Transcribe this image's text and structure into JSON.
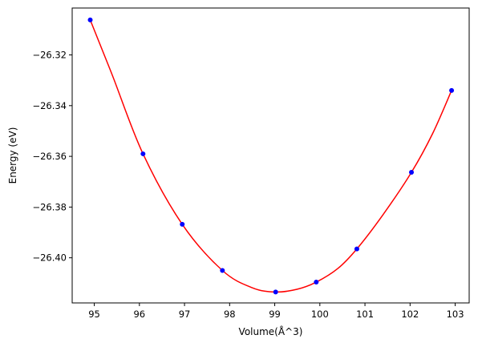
{
  "chart_data": {
    "type": "scatter",
    "title": "",
    "xlabel": "Volume(Å^3)",
    "ylabel": "Energy (eV)",
    "xlim": [
      94.51,
      103.31
    ],
    "ylim": [
      -26.4178,
      -26.3015
    ],
    "xticks": [
      95,
      96,
      97,
      98,
      99,
      100,
      101,
      102,
      103
    ],
    "xtick_labels": [
      "95",
      "96",
      "97",
      "98",
      "99",
      "100",
      "101",
      "102",
      "103"
    ],
    "yticks": [
      -26.32,
      -26.34,
      -26.36,
      -26.38,
      -26.4
    ],
    "ytick_labels": [
      "−26.32",
      "−26.34",
      "−26.36",
      "−26.38",
      "−26.40"
    ],
    "grid": false,
    "series": [
      {
        "kind": "points",
        "color": "#0000ff",
        "marker": "circle",
        "x": [
          94.91,
          96.08,
          96.95,
          97.84,
          99.02,
          99.92,
          100.82,
          102.03,
          102.92
        ],
        "y": [
          -26.3062,
          -26.359,
          -26.3868,
          -26.405,
          -26.4135,
          -26.4096,
          -26.3965,
          -26.3663,
          -26.334
        ]
      },
      {
        "kind": "fit-curve",
        "color": "#ff0000",
        "x": [
          94.91,
          95.4,
          96.08,
          96.95,
          97.84,
          98.5,
          99.02,
          99.5,
          99.92,
          100.4,
          100.82,
          101.4,
          102.03,
          102.5,
          102.92
        ],
        "y": [
          -26.3062,
          -26.328,
          -26.359,
          -26.3868,
          -26.405,
          -26.4118,
          -26.4135,
          -26.4124,
          -26.4096,
          -26.4042,
          -26.3965,
          -26.383,
          -26.3663,
          -26.351,
          -26.334
        ]
      }
    ]
  }
}
